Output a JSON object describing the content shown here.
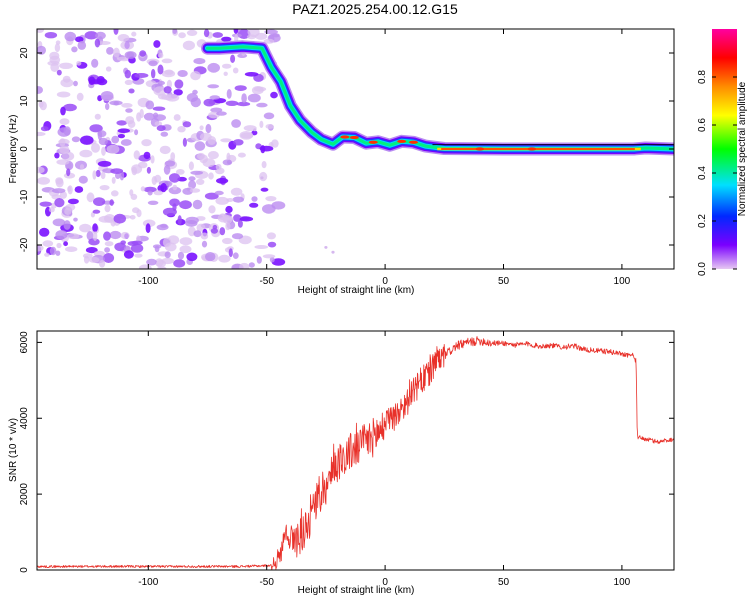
{
  "page_title": "PAZ1.2025.254.00.12.G15",
  "chart_data": [
    {
      "type": "heatmap",
      "xlabel": "Height of straight line (km)",
      "ylabel": "Frequency (Hz)",
      "xlim": [
        -147,
        122
      ],
      "ylim": [
        -25,
        25
      ],
      "x_ticks": [
        -100,
        -50,
        0,
        50,
        100
      ],
      "y_ticks": [
        -20,
        -10,
        0,
        10,
        20
      ],
      "x_tick_labels": [
        "-100",
        "-50",
        "0",
        "50",
        "100"
      ],
      "y_tick_labels": [
        "-20",
        "-10",
        "0",
        "10",
        "20"
      ],
      "colorbar": {
        "label": "Normalized spectral amplitude",
        "range": [
          0,
          1
        ],
        "ticks": [
          0.0,
          0.2,
          0.4,
          0.6,
          0.8
        ],
        "tick_labels": [
          "0.0",
          "0.2",
          "0.4",
          "0.6",
          "0.8"
        ],
        "colors": [
          "#e6c8f2",
          "#7a00ff",
          "#0028ff",
          "#00e0ff",
          "#00ff00",
          "#ffff00",
          "#ff8c00",
          "#ff0000",
          "#ff00a0"
        ]
      },
      "noise_region": {
        "x": [
          -147,
          -48
        ],
        "y": [
          -25,
          25
        ]
      },
      "ridge": [
        {
          "x": -75,
          "y": 21
        },
        {
          "x": -70,
          "y": 21
        },
        {
          "x": -60,
          "y": 21.3
        },
        {
          "x": -52,
          "y": 21
        },
        {
          "x": -48,
          "y": 17
        },
        {
          "x": -44,
          "y": 14
        },
        {
          "x": -40,
          "y": 9
        },
        {
          "x": -36,
          "y": 6
        },
        {
          "x": -31,
          "y": 3.5
        },
        {
          "x": -27,
          "y": 2
        },
        {
          "x": -22,
          "y": 1
        },
        {
          "x": -18,
          "y": 2.5
        },
        {
          "x": -13,
          "y": 2.4
        },
        {
          "x": -8,
          "y": 1.2
        },
        {
          "x": -3,
          "y": 1.5
        },
        {
          "x": 2,
          "y": 0.8
        },
        {
          "x": 7,
          "y": 1.6
        },
        {
          "x": 12,
          "y": 1.4
        },
        {
          "x": 17,
          "y": 0.6
        },
        {
          "x": 25,
          "y": 0.1
        },
        {
          "x": 50,
          "y": 0
        },
        {
          "x": 80,
          "y": 0
        },
        {
          "x": 105,
          "y": 0
        },
        {
          "x": 110,
          "y": 0.2
        },
        {
          "x": 122,
          "y": 0
        }
      ]
    },
    {
      "type": "line",
      "xlabel": "Height of straight line (km)",
      "ylabel": "SNR (10 * v/v)",
      "xlim": [
        -147,
        122
      ],
      "ylim": [
        0,
        6300
      ],
      "x_ticks": [
        -100,
        -50,
        0,
        50,
        100
      ],
      "y_ticks": [
        0,
        2000,
        4000,
        6000
      ],
      "x_tick_labels": [
        "-100",
        "-50",
        "0",
        "50",
        "100"
      ],
      "y_tick_labels": [
        "0",
        "2000",
        "4000",
        "6000"
      ],
      "color": "#e8312a",
      "series": [
        {
          "name": "SNR",
          "points": [
            {
              "x": -147,
              "y": 90
            },
            {
              "x": -120,
              "y": 95
            },
            {
              "x": -90,
              "y": 92
            },
            {
              "x": -60,
              "y": 95
            },
            {
              "x": -48,
              "y": 120
            },
            {
              "x": -44,
              "y": 400
            },
            {
              "x": -42,
              "y": 1150
            },
            {
              "x": -40,
              "y": 700
            },
            {
              "x": -35,
              "y": 950
            },
            {
              "x": -30,
              "y": 1700
            },
            {
              "x": -25,
              "y": 2200
            },
            {
              "x": -20,
              "y": 2850
            },
            {
              "x": -15,
              "y": 3100
            },
            {
              "x": -10,
              "y": 3300
            },
            {
              "x": -5,
              "y": 3500
            },
            {
              "x": 0,
              "y": 3800
            },
            {
              "x": 5,
              "y": 4100
            },
            {
              "x": 10,
              "y": 4500
            },
            {
              "x": 15,
              "y": 4950
            },
            {
              "x": 20,
              "y": 5300
            },
            {
              "x": 25,
              "y": 5650
            },
            {
              "x": 30,
              "y": 5900
            },
            {
              "x": 35,
              "y": 6000
            },
            {
              "x": 40,
              "y": 6050
            },
            {
              "x": 45,
              "y": 5980
            },
            {
              "x": 50,
              "y": 5980
            },
            {
              "x": 55,
              "y": 5930
            },
            {
              "x": 60,
              "y": 5960
            },
            {
              "x": 65,
              "y": 5900
            },
            {
              "x": 70,
              "y": 5920
            },
            {
              "x": 75,
              "y": 5880
            },
            {
              "x": 80,
              "y": 5900
            },
            {
              "x": 85,
              "y": 5800
            },
            {
              "x": 90,
              "y": 5780
            },
            {
              "x": 95,
              "y": 5750
            },
            {
              "x": 100,
              "y": 5700
            },
            {
              "x": 105,
              "y": 5650
            },
            {
              "x": 106,
              "y": 5500
            },
            {
              "x": 106.5,
              "y": 3500
            },
            {
              "x": 110,
              "y": 3450
            },
            {
              "x": 115,
              "y": 3380
            },
            {
              "x": 122,
              "y": 3450
            }
          ]
        }
      ]
    }
  ]
}
